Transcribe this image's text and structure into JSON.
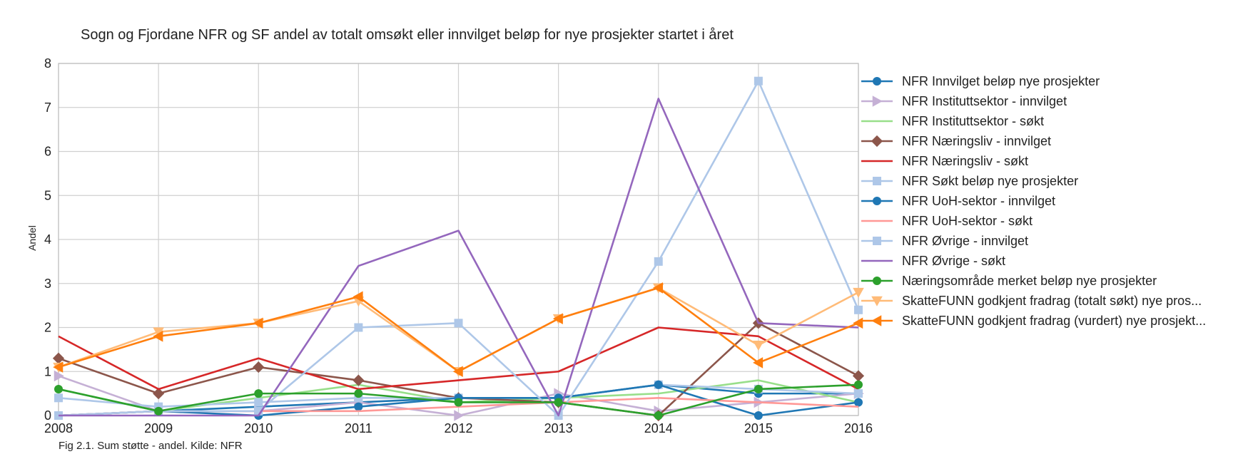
{
  "chart_data": {
    "type": "line",
    "title": "Sogn og Fjordane NFR og SF andel av totalt omsøkt eller innvilget beløp for nye prosjekter startet i året",
    "xlabel": "",
    "ylabel": "Andel",
    "caption": "Fig 2.1. Sum støtte - andel. Kilde: NFR",
    "x": [
      "2008",
      "2009",
      "2010",
      "2011",
      "2012",
      "2013",
      "2014",
      "2015",
      "2016"
    ],
    "ylim": [
      0,
      8
    ],
    "yticks": [
      "0",
      "1",
      "2",
      "3",
      "4",
      "5",
      "6",
      "7",
      "8"
    ],
    "grid": true,
    "legend_position": "right",
    "series": [
      {
        "name": "NFR Innvilget beløp nye prosjekter",
        "color": "#1f77b4",
        "marker": "circle",
        "values": [
          0.0,
          0.1,
          0.2,
          0.3,
          0.4,
          0.4,
          0.7,
          0.5,
          0.5
        ]
      },
      {
        "name": "NFR Instituttsektor - innvilget",
        "color": "#c5b0d5",
        "marker": "triangle-right",
        "values": [
          0.9,
          0.1,
          0.1,
          0.3,
          0.0,
          0.5,
          0.1,
          0.3,
          0.5
        ]
      },
      {
        "name": "NFR Instituttsektor - søkt",
        "color": "#98df8a",
        "marker": "none",
        "values": [
          0.6,
          0.1,
          0.4,
          0.7,
          0.3,
          0.4,
          0.5,
          0.8,
          0.3
        ]
      },
      {
        "name": "NFR Næringsliv - innvilget",
        "color": "#8c564b",
        "marker": "diamond",
        "values": [
          1.3,
          0.5,
          1.1,
          0.8,
          0.4,
          0.3,
          0.0,
          2.1,
          0.9
        ]
      },
      {
        "name": "NFR Næringsliv - søkt",
        "color": "#d62728",
        "marker": "none",
        "values": [
          1.8,
          0.6,
          1.3,
          0.6,
          0.8,
          1.0,
          2.0,
          1.8,
          0.6
        ]
      },
      {
        "name": "NFR Søkt beløp nye prosjekter",
        "color": "#aec7e8",
        "marker": "square",
        "values": [
          0.4,
          0.2,
          0.3,
          0.4,
          0.4,
          0.4,
          0.7,
          0.6,
          0.5
        ]
      },
      {
        "name": "NFR UoH-sektor - innvilget",
        "color": "#1f77b4",
        "marker": "circle",
        "values": [
          0.0,
          0.1,
          0.0,
          0.2,
          0.4,
          0.4,
          0.7,
          0.0,
          0.3
        ]
      },
      {
        "name": "NFR UoH-sektor - søkt",
        "color": "#ff9896",
        "marker": "none",
        "values": [
          0.0,
          0.1,
          0.1,
          0.1,
          0.2,
          0.3,
          0.4,
          0.3,
          0.2
        ]
      },
      {
        "name": "NFR Øvrige - innvilget",
        "color": "#aec7e8",
        "marker": "square",
        "values": [
          0.0,
          0.1,
          0.1,
          2.0,
          2.1,
          0.0,
          3.5,
          7.6,
          2.4
        ]
      },
      {
        "name": "NFR Øvrige - søkt",
        "color": "#9467bd",
        "marker": "none",
        "values": [
          0.0,
          0.0,
          0.0,
          3.4,
          4.2,
          0.0,
          7.2,
          2.1,
          2.0
        ]
      },
      {
        "name": "Næringsområde merket beløp nye prosjekter",
        "color": "#2ca02c",
        "marker": "circle",
        "values": [
          0.6,
          0.1,
          0.5,
          0.5,
          0.3,
          0.3,
          0.0,
          0.6,
          0.7
        ]
      },
      {
        "name": "SkatteFUNN godkjent fradrag (totalt søkt) nye pros...",
        "color": "#ffbb78",
        "marker": "triangle-down",
        "values": [
          1.1,
          1.9,
          2.1,
          2.6,
          1.0,
          2.2,
          2.9,
          1.6,
          2.8
        ]
      },
      {
        "name": "SkatteFUNN godkjent fradrag (vurdert) nye prosjekt...",
        "color": "#ff7f0e",
        "marker": "triangle-left",
        "values": [
          1.1,
          1.8,
          2.1,
          2.7,
          1.0,
          2.2,
          2.9,
          1.2,
          2.1
        ]
      }
    ]
  }
}
